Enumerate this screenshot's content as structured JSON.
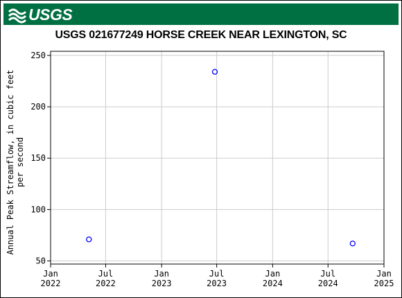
{
  "header": {
    "agency": "USGS",
    "banner_color": "#006f41"
  },
  "chart_data": {
    "type": "scatter",
    "title": "USGS 021677249 HORSE CREEK NEAR LEXINGTON, SC",
    "xlabel": "",
    "ylabel_lines": [
      "Annual Peak Streamflow, in cubic feet",
      "per second"
    ],
    "xlim": [
      "2022-01-01",
      "2025-01-01"
    ],
    "ylim": [
      47,
      254
    ],
    "yticks": [
      50,
      100,
      150,
      200,
      250
    ],
    "xticks": [
      {
        "date": "2022-01-01",
        "line1": "Jan",
        "line2": "2022"
      },
      {
        "date": "2022-07-01",
        "line1": "Jul",
        "line2": "2022"
      },
      {
        "date": "2023-01-01",
        "line1": "Jan",
        "line2": "2023"
      },
      {
        "date": "2023-07-01",
        "line1": "Jul",
        "line2": "2023"
      },
      {
        "date": "2024-01-01",
        "line1": "Jan",
        "line2": "2024"
      },
      {
        "date": "2024-07-01",
        "line1": "Jul",
        "line2": "2024"
      },
      {
        "date": "2025-01-01",
        "line1": "Jan",
        "line2": "2025"
      }
    ],
    "grid": true,
    "marker_color": "#0000ff",
    "points": [
      {
        "x": "2022-05-07",
        "y": 71
      },
      {
        "x": "2023-06-25",
        "y": 234
      },
      {
        "x": "2024-09-20",
        "y": 67
      }
    ]
  }
}
